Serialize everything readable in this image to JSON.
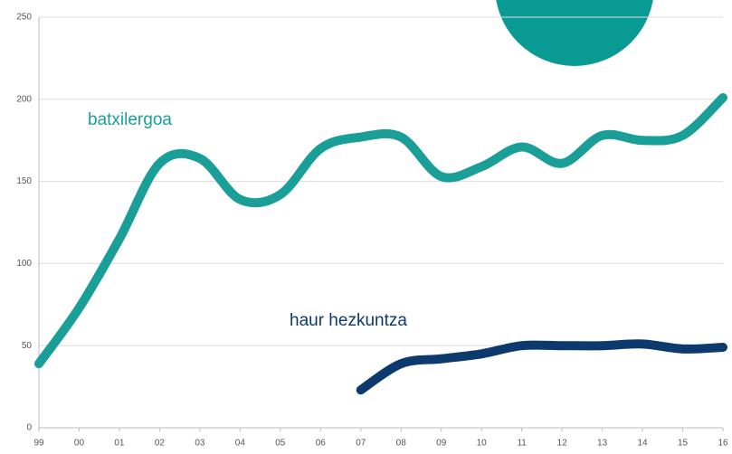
{
  "chart_data": {
    "type": "line",
    "categories": [
      "99",
      "00",
      "01",
      "02",
      "03",
      "04",
      "05",
      "06",
      "07",
      "08",
      "09",
      "10",
      "11",
      "12",
      "13",
      "14",
      "15",
      "16"
    ],
    "series": [
      {
        "name": "batxilergoa",
        "color": "#1a9e98",
        "values": [
          39,
          73,
          115,
          161,
          164,
          139,
          142,
          170,
          177,
          177,
          153,
          159,
          171,
          161,
          178,
          175,
          178,
          201
        ]
      },
      {
        "name": "haur hezkuntza",
        "color": "#0d3a6e",
        "values": [
          null,
          null,
          null,
          null,
          null,
          null,
          null,
          null,
          23,
          39,
          42,
          45,
          50,
          50,
          50,
          51,
          48,
          49
        ]
      }
    ],
    "ylim": [
      0,
      250
    ],
    "yticks": [
      0,
      50,
      100,
      150,
      200,
      250
    ],
    "grid": true
  }
}
